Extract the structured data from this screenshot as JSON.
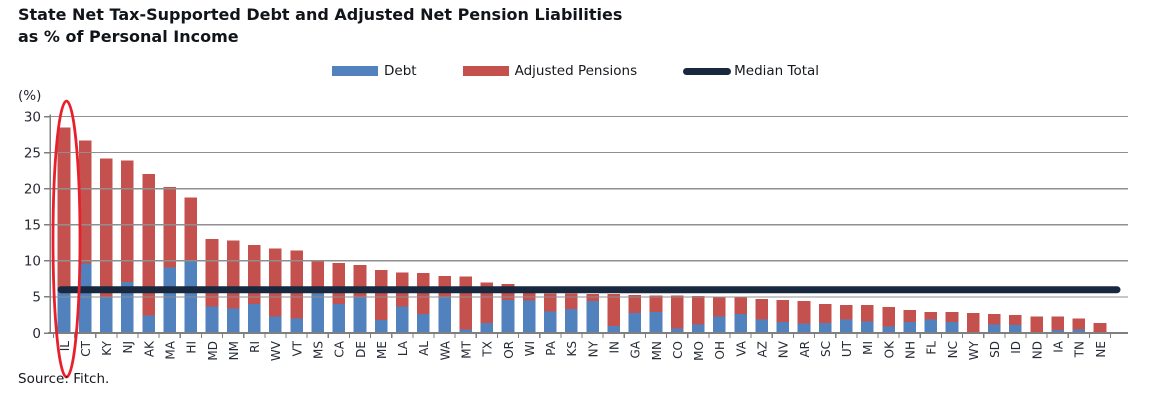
{
  "title": {
    "line1": "State Net Tax-Supported Debt and Adjusted Net Pension Liabilities",
    "line2": "as % of Personal Income"
  },
  "legend": [
    {
      "label": "Debt",
      "type": "swatch",
      "color": "#5282BE"
    },
    {
      "label": "Adjusted Pensions",
      "type": "swatch",
      "color": "#C4514E"
    },
    {
      "label": "Median Total",
      "type": "line",
      "color": "#17283F"
    }
  ],
  "source": "Source: Fitch.",
  "annotation": {
    "shape": "ellipse",
    "target": "IL",
    "color": "#E8202C"
  },
  "chart_data": {
    "type": "bar",
    "stacked": true,
    "title": "State Net Tax-Supported Debt and Adjusted Net Pension Liabilities as % of Personal Income",
    "ylabel": "(%)",
    "xlabel": "",
    "ylim": [
      0,
      30
    ],
    "yticks": [
      0,
      5,
      10,
      15,
      20,
      25,
      30
    ],
    "grid": true,
    "legend_position": "top",
    "categories": [
      "IL",
      "CT",
      "KY",
      "NJ",
      "AK",
      "MA",
      "HI",
      "MD",
      "NM",
      "RI",
      "WV",
      "VT",
      "MS",
      "CA",
      "DE",
      "ME",
      "LA",
      "AL",
      "WA",
      "MT",
      "TX",
      "OR",
      "WI",
      "PA",
      "KS",
      "NY",
      "IN",
      "GA",
      "MN",
      "CO",
      "MO",
      "OH",
      "VA",
      "AZ",
      "NV",
      "AR",
      "SC",
      "UT",
      "MI",
      "OK",
      "NH",
      "FL",
      "NC",
      "WY",
      "SD",
      "ID",
      "ND",
      "IA",
      "TN",
      "NE"
    ],
    "series": [
      {
        "name": "Debt",
        "color": "#5282BE",
        "values": [
          5.8,
          9.6,
          4.9,
          7.1,
          2.4,
          9.1,
          10.1,
          3.7,
          3.4,
          4.0,
          2.3,
          2.0,
          5.5,
          4.0,
          4.9,
          1.8,
          3.7,
          2.6,
          4.9,
          0.5,
          1.4,
          4.6,
          4.5,
          3.0,
          3.3,
          4.4,
          1.0,
          2.8,
          2.9,
          0.6,
          1.2,
          2.3,
          2.6,
          1.9,
          1.5,
          1.3,
          1.4,
          1.9,
          1.6,
          0.9,
          1.5,
          1.9,
          1.5,
          0.0,
          1.2,
          1.1,
          0.0,
          0.4,
          0.5,
          0.0
        ]
      },
      {
        "name": "Adjusted Pensions",
        "color": "#C4514E",
        "values": [
          22.7,
          17.1,
          19.3,
          16.8,
          19.6,
          11.1,
          8.7,
          9.3,
          9.4,
          8.2,
          9.4,
          9.4,
          4.5,
          5.7,
          4.5,
          6.9,
          4.7,
          5.7,
          3.0,
          7.3,
          5.6,
          2.2,
          1.1,
          2.5,
          2.2,
          1.0,
          4.4,
          2.5,
          2.3,
          4.6,
          3.9,
          2.7,
          2.3,
          2.8,
          3.1,
          3.1,
          2.6,
          2.0,
          2.3,
          2.7,
          1.7,
          1.0,
          1.4,
          2.8,
          1.4,
          1.4,
          2.3,
          1.9,
          1.5,
          1.4
        ]
      }
    ],
    "median_total": {
      "label": "Median Total",
      "value": 6.0,
      "color": "#17283F"
    }
  }
}
